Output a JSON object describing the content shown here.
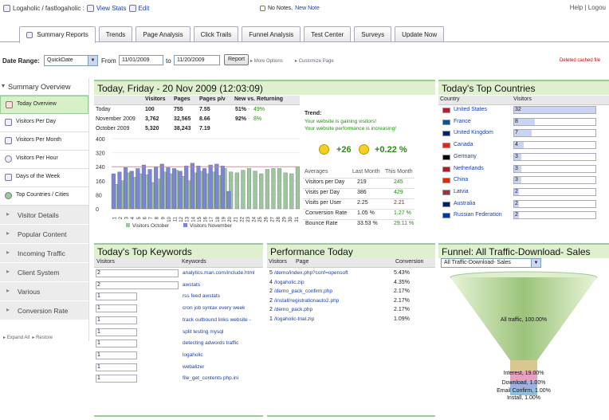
{
  "topbar": {
    "breadcrumb": "Logaholic / fastlogaholic :",
    "view_stats": "View Stats",
    "edit": "Edit",
    "notes": "No Notes,",
    "new_note": "New Note",
    "help": "Help",
    "logout": "Logou"
  },
  "tabs": [
    "Summary Reports",
    "Trends",
    "Page Analysis",
    "Click Trails",
    "Funnel Analysis",
    "Test Center",
    "Surveys",
    "Update Now"
  ],
  "daterange": {
    "label": "Date Range:",
    "preset": "QuickDate",
    "from_label": "From",
    "from": "11/01/2009",
    "to_label": "to",
    "to": "11/20/2009",
    "report_btn": "Report",
    "more_options": "More Options",
    "customize": "Customize Page",
    "deleted": "Deleted cached file"
  },
  "sidebar": {
    "title": "Summary Overview",
    "items": [
      "Today Overview",
      "Visitors Per Day",
      "Visitors Per Month",
      "Visitors Per Hour",
      "Days of the Week",
      "Top Countries / Cities"
    ],
    "categories": [
      "Visitor Details",
      "Popular Content",
      "Incoming Traffic",
      "Client System",
      "Various",
      "Conversion Rate"
    ],
    "expand_all": "Expand All",
    "restore": "Restore"
  },
  "today": {
    "title": "Today, Friday - 20 Nov 2009 (12:03:09)",
    "headers": [
      "Visitors",
      "Pages",
      "Pages p/v",
      "New vs. Returning"
    ],
    "rows": [
      {
        "label": "Today",
        "visitors": "100",
        "pages": "755",
        "ppv": "7.55",
        "new": "51%",
        "ret": "49%"
      },
      {
        "label": "November 2009",
        "visitors": "3,762",
        "pages": "32,565",
        "ppv": "8.66",
        "new": "92%",
        "ret": "8%"
      },
      {
        "label": "October 2009",
        "visitors": "5,320",
        "pages": "38,243",
        "ppv": "7.19",
        "new": "",
        "ret": ""
      }
    ],
    "trend_title": "Trend:",
    "trend_1": "Your website is gaining visitors!",
    "trend_2": "Your website performance is increasing!",
    "gain_visitors": "+26",
    "gain_perf": "+0.22 %",
    "avg_headers": [
      "Averages",
      "Last Month",
      "This Month"
    ],
    "averages": [
      {
        "label": "Visitors per Day",
        "last": "219",
        "this": "245",
        "color": "#2a8a1a"
      },
      {
        "label": "Visits per Day",
        "last": "386",
        "this": "429",
        "color": "#2a8a1a"
      },
      {
        "label": "Visits per User",
        "last": "2.25",
        "this": "2.21",
        "color": "#c00"
      },
      {
        "label": "Conversion Rate",
        "last": "1.05 %",
        "this": "1.27 %",
        "color": "#2a8a1a"
      },
      {
        "label": "Bounce Rate",
        "last": "33.53 %",
        "this": "29.11 %",
        "color": "#2a8a1a"
      }
    ]
  },
  "chart_data": {
    "type": "bar",
    "x": [
      "1",
      "2",
      "3",
      "4",
      "5",
      "6",
      "7",
      "8",
      "9",
      "10",
      "11",
      "12",
      "13",
      "14",
      "15",
      "16",
      "17",
      "18",
      "19",
      "20",
      "21",
      "22",
      "23",
      "24",
      "25",
      "26",
      "27",
      "28",
      "29",
      "30",
      "31"
    ],
    "y_ticks": [
      "400",
      "320",
      "240",
      "160",
      "80",
      "0"
    ],
    "ylim": [
      0,
      400
    ],
    "series": [
      {
        "name": "Visitors October",
        "color": "#9bc79b",
        "values": [
          140,
          160,
          205,
          180,
          200,
          195,
          150,
          170,
          210,
          200,
          220,
          185,
          160,
          205,
          215,
          200,
          210,
          190,
          230,
          210,
          205,
          220,
          230,
          215,
          200,
          225,
          230,
          230,
          205,
          200,
          240
        ]
      },
      {
        "name": "Visitors November",
        "color": "#7d86d6",
        "values": [
          200,
          210,
          235,
          215,
          230,
          250,
          225,
          240,
          255,
          235,
          230,
          215,
          245,
          260,
          245,
          230,
          250,
          255,
          245,
          100,
          0,
          0,
          0,
          0,
          0,
          0,
          0,
          0,
          0,
          0,
          0
        ]
      }
    ],
    "reference_line": 240,
    "legend_position": "bottom"
  },
  "countries": {
    "title": "Today's Top Countries",
    "headers": [
      "Country",
      "Visitors"
    ],
    "rows": [
      {
        "name": "United States",
        "value": "32",
        "frac": 1.0
      },
      {
        "name": "France",
        "value": "8",
        "frac": 0.25
      },
      {
        "name": "United Kingdom",
        "value": "7",
        "frac": 0.22
      },
      {
        "name": "Canada",
        "value": "4",
        "frac": 0.12
      },
      {
        "name": "Germany",
        "value": "3",
        "frac": 0.09
      },
      {
        "name": "Netherlands",
        "value": "3",
        "frac": 0.09
      },
      {
        "name": "China",
        "value": "3",
        "frac": 0.09
      },
      {
        "name": "Latvia",
        "value": "2",
        "frac": 0.06
      },
      {
        "name": "Australia",
        "value": "2",
        "frac": 0.06
      },
      {
        "name": "Russian Federation",
        "value": "2",
        "frac": 0.06
      }
    ]
  },
  "keywords": {
    "title": "Today's Top Keywords",
    "headers": [
      "Visitors",
      "Keywords"
    ],
    "rows": [
      {
        "value": "2",
        "kw": "analytics.man.com/include.html",
        "frac": 1.0
      },
      {
        "value": "2",
        "kw": "awstats",
        "frac": 1.0
      },
      {
        "value": "1",
        "kw": "rss feed awstats",
        "frac": 0.5
      },
      {
        "value": "1",
        "kw": "cron job syntax every week",
        "frac": 0.5
      },
      {
        "value": "1",
        "kw": "track outbound links website -",
        "frac": 0.5
      },
      {
        "value": "1",
        "kw": "split testing mysql",
        "frac": 0.5
      },
      {
        "value": "1",
        "kw": "detecting adwords traffic",
        "frac": 0.5
      },
      {
        "value": "1",
        "kw": "logaholic",
        "frac": 0.5
      },
      {
        "value": "1",
        "kw": "webalizer",
        "frac": 0.5
      },
      {
        "value": "1",
        "kw": "file_get_contents php.ini",
        "frac": 0.5
      }
    ]
  },
  "performance": {
    "title": "Performance Today",
    "headers": [
      "Visitors",
      "Page",
      "Conversion"
    ],
    "rows": [
      {
        "v": "5",
        "page": "/demo/index.php?conf=opensoft",
        "conv": "5.43%"
      },
      {
        "v": "4",
        "page": "/logaholic.zip",
        "conv": "4.35%"
      },
      {
        "v": "2",
        "page": "/demo_pack_confirm.php",
        "conv": "2.17%"
      },
      {
        "v": "2",
        "page": "/install/registrationauto2.php",
        "conv": "2.17%"
      },
      {
        "v": "2",
        "page": "/demo_pack.php",
        "conv": "2.17%"
      },
      {
        "v": "1",
        "page": "/logaholic-trial.zip",
        "conv": "1.09%"
      }
    ]
  },
  "funnel": {
    "title": "Funnel: All Traffic-Download- Sales",
    "selected": "All Traffic-Download- Sales",
    "stages": [
      {
        "label": "All traffic, 100.00%"
      },
      {
        "label": "Interest, 19.00%"
      },
      {
        "label": "Download, 1.00%"
      },
      {
        "label": "Email Confirm, 1.00%"
      },
      {
        "label": "Install, 1.00%"
      }
    ]
  },
  "colors": {
    "accent_green": "#dff0cf",
    "link": "#1a3fa8",
    "positive": "#2a8a1a",
    "negative": "#c00"
  }
}
